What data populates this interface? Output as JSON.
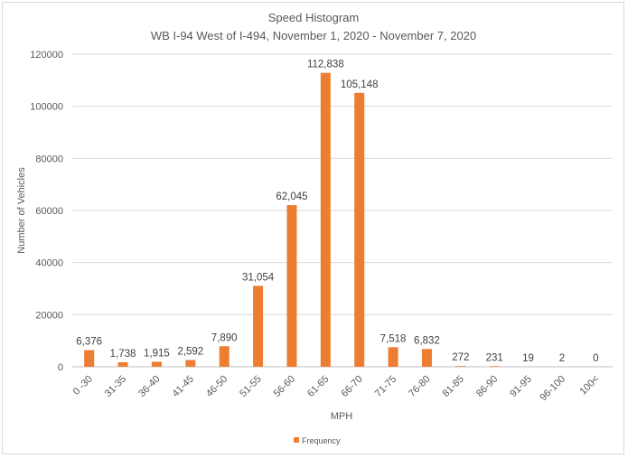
{
  "chart_data": {
    "type": "bar",
    "title": "Speed Histogram",
    "subtitle": "WB I-94 West of I-494,  November 1, 2020 - November 7, 2020",
    "xlabel": "MPH",
    "ylabel": "Number of Vehicles",
    "ylim": [
      0,
      120000
    ],
    "yticks": [
      "0",
      "20000",
      "40000",
      "60000",
      "80000",
      "100000",
      "120000"
    ],
    "grid": "horizontal",
    "legend_position": "bottom",
    "categories": [
      "0 -30",
      "31-35",
      "36-40",
      "41-45",
      "46-50",
      "51-55",
      "56-60",
      "61-65",
      "66-70",
      "71-75",
      "76-80",
      "81-85",
      "86-90",
      "91-95",
      "96-100",
      "100<"
    ],
    "series": [
      {
        "name": "Frequency",
        "color": "#ed7d31",
        "values": [
          6376,
          1738,
          1915,
          2592,
          7890,
          31054,
          62045,
          112838,
          105148,
          7518,
          6832,
          272,
          231,
          19,
          2,
          0
        ],
        "labels": [
          "6,376",
          "1,738",
          "1,915",
          "2,592",
          "7,890",
          "31,054",
          "62,045",
          "112,838",
          "105,148",
          "7,518",
          "6,832",
          "272",
          "231",
          "19",
          "2",
          "0"
        ]
      }
    ]
  }
}
